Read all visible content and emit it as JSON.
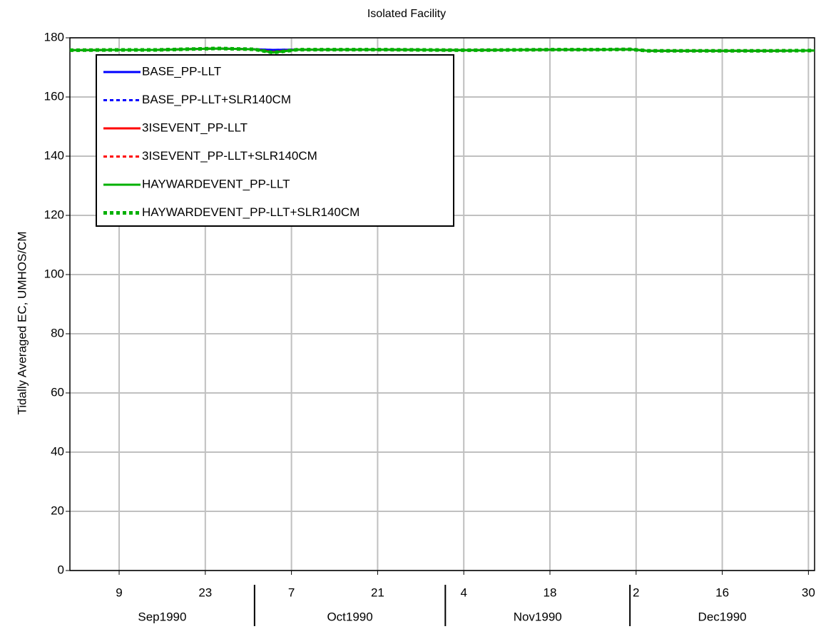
{
  "chart_data": {
    "type": "line",
    "title": "Isolated Facility",
    "ylabel": "Tidally Averaged EC, UMHOS/CM",
    "x": [
      "1990-09-01",
      "1990-09-08",
      "1990-09-15",
      "1990-09-25",
      "1990-10-01",
      "1990-10-04",
      "1990-10-08",
      "1990-10-15",
      "1990-10-22",
      "1990-10-29",
      "1990-11-05",
      "1990-11-12",
      "1990-11-19",
      "1990-11-26",
      "1990-12-01",
      "1990-12-04",
      "1990-12-10",
      "1990-12-17",
      "1990-12-24",
      "1990-12-31"
    ],
    "series": [
      {
        "name": "BASE_PP-LLT",
        "color": "#0000ff",
        "dash": false,
        "values": [
          175.8,
          175.9,
          175.9,
          176.4,
          176.1,
          175.9,
          176.0,
          176.0,
          176.0,
          175.9,
          175.8,
          175.9,
          176.0,
          176.0,
          176.1,
          175.6,
          175.6,
          175.6,
          175.6,
          175.7
        ]
      },
      {
        "name": "BASE_PP-LLT+SLR140CM",
        "color": "#0000ff",
        "dash": true,
        "values": [
          175.8,
          175.9,
          175.9,
          176.4,
          176.1,
          175.9,
          176.0,
          176.0,
          176.0,
          175.9,
          175.8,
          175.9,
          176.0,
          176.0,
          176.1,
          175.6,
          175.6,
          175.6,
          175.6,
          175.7
        ]
      },
      {
        "name": "3ISEVENT_PP-LLT",
        "color": "#ff0000",
        "dash": false,
        "values": [
          175.8,
          175.9,
          175.9,
          176.4,
          176.1,
          175.2,
          176.0,
          176.0,
          176.0,
          175.9,
          175.8,
          175.9,
          176.0,
          176.0,
          176.1,
          175.6,
          175.6,
          175.6,
          175.6,
          175.7
        ]
      },
      {
        "name": "3ISEVENT_PP-LLT+SLR140CM",
        "color": "#ff0000",
        "dash": true,
        "values": [
          175.8,
          175.9,
          175.9,
          176.4,
          176.1,
          175.2,
          176.0,
          176.0,
          176.0,
          175.9,
          175.8,
          175.9,
          176.0,
          176.0,
          176.1,
          175.6,
          175.6,
          175.6,
          175.6,
          175.7
        ]
      },
      {
        "name": "HAYWARDEVENT_PP-LLT",
        "color": "#00b000",
        "dash": false,
        "values": [
          175.8,
          175.9,
          175.9,
          176.4,
          176.1,
          175.0,
          176.0,
          176.0,
          176.0,
          175.9,
          175.8,
          175.9,
          176.0,
          176.0,
          176.1,
          175.6,
          175.6,
          175.6,
          175.6,
          175.7
        ]
      },
      {
        "name": "HAYWARDEVENT_PP-LLT+SLR140CM",
        "color": "#00b000",
        "dash": true,
        "values": [
          175.8,
          175.9,
          175.9,
          176.4,
          176.1,
          175.0,
          176.0,
          176.0,
          176.0,
          175.9,
          175.8,
          175.9,
          176.0,
          176.0,
          176.1,
          175.6,
          175.6,
          175.6,
          175.6,
          175.7
        ]
      }
    ],
    "xlim": [
      "1990-09-01",
      "1990-12-31"
    ],
    "xticks": [
      {
        "value": "1990-09-09",
        "label": "9"
      },
      {
        "value": "1990-09-23",
        "label": "23"
      },
      {
        "value": "1990-10-07",
        "label": "7"
      },
      {
        "value": "1990-10-21",
        "label": "21"
      },
      {
        "value": "1990-11-04",
        "label": "4"
      },
      {
        "value": "1990-11-18",
        "label": "18"
      },
      {
        "value": "1990-12-02",
        "label": "2"
      },
      {
        "value": "1990-12-16",
        "label": "16"
      },
      {
        "value": "1990-12-30",
        "label": "30"
      }
    ],
    "months": [
      {
        "value": "1990-09",
        "label": "Sep1990"
      },
      {
        "value": "1990-10",
        "label": "Oct1990"
      },
      {
        "value": "1990-11",
        "label": "Nov1990"
      },
      {
        "value": "1990-12",
        "label": "Dec1990"
      }
    ],
    "ylim": [
      0,
      180
    ],
    "yticks": [
      0,
      20,
      40,
      60,
      80,
      100,
      120,
      140,
      160,
      180
    ],
    "grid": true,
    "legend": "top-left"
  }
}
